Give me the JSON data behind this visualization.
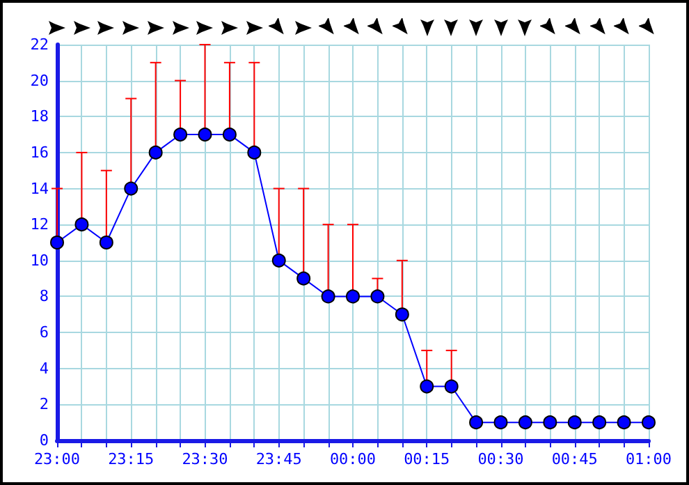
{
  "chart_data": {
    "type": "line",
    "categories": [
      "23:00",
      null,
      null,
      "23:15",
      null,
      null,
      "23:30",
      null,
      null,
      "23:45",
      null,
      null,
      "00:00",
      null,
      null,
      "00:15",
      null,
      null,
      "00:30",
      null,
      null,
      "00:45",
      null,
      null,
      "01:00"
    ],
    "series": [
      {
        "color": "#0000ff",
        "values": [
          11,
          12,
          11,
          14,
          16,
          17,
          17,
          17,
          16,
          10,
          9,
          8,
          8,
          8,
          7,
          3,
          3,
          1,
          1,
          1,
          1,
          1,
          1,
          1,
          1
        ],
        "errors": [
          [
            11,
            14
          ],
          [
            12,
            16
          ],
          [
            11,
            15
          ],
          [
            14,
            19
          ],
          [
            16,
            21
          ],
          [
            17,
            20
          ],
          [
            17,
            22
          ],
          [
            17,
            21
          ],
          [
            16,
            21
          ],
          [
            10,
            14
          ],
          [
            9,
            14
          ],
          [
            8,
            12
          ],
          [
            8,
            12
          ],
          [
            8,
            9
          ],
          [
            7,
            10
          ],
          [
            3,
            5
          ],
          [
            3,
            5
          ],
          null,
          null,
          null,
          null,
          null,
          null,
          null,
          null
        ]
      }
    ],
    "ylim": [
      0,
      22
    ],
    "yticks": [
      0,
      2,
      4,
      6,
      8,
      10,
      12,
      14,
      16,
      18,
      20,
      22
    ],
    "grid": true,
    "marker": "circle",
    "line_style": "solid"
  }
}
